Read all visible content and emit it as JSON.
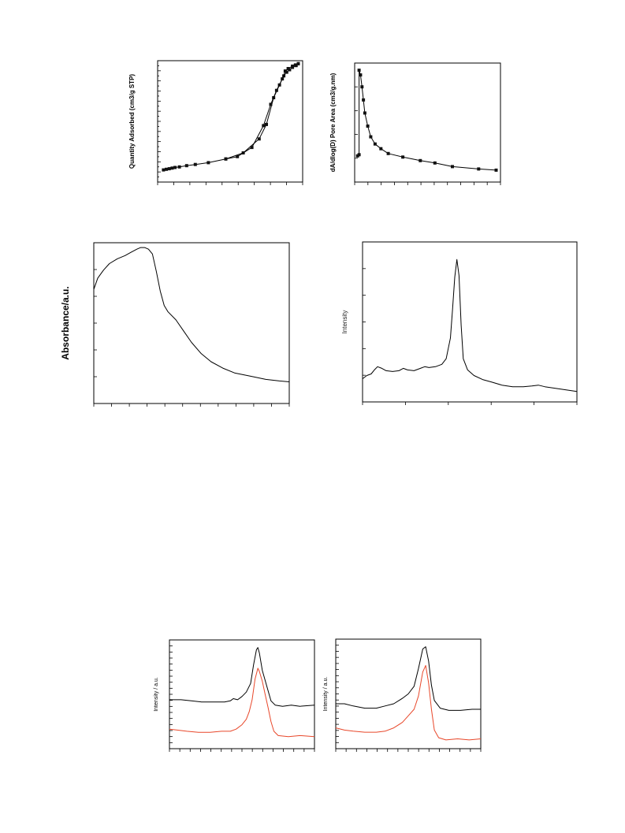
{
  "chart_data": [
    {
      "type": "line",
      "panel": "nitrogen-isotherm",
      "ylabel": "Quantity Adsorbed (cm3/g STP)",
      "xlabel": "",
      "xlim": [
        0,
        1
      ],
      "ylim": [
        0,
        1
      ],
      "markers": true,
      "series": [
        {
          "values": [
            [
              0.04,
              0.1
            ],
            [
              0.06,
              0.105
            ],
            [
              0.08,
              0.11
            ],
            [
              0.1,
              0.115
            ],
            [
              0.12,
              0.12
            ],
            [
              0.15,
              0.125
            ],
            [
              0.2,
              0.135
            ],
            [
              0.26,
              0.145
            ],
            [
              0.35,
              0.16
            ],
            [
              0.47,
              0.19
            ],
            [
              0.59,
              0.24
            ],
            [
              0.7,
              0.355
            ],
            [
              0.75,
              0.475
            ],
            [
              0.8,
              0.695
            ],
            [
              0.84,
              0.8
            ],
            [
              0.87,
              0.875
            ],
            [
              0.89,
              0.905
            ],
            [
              0.91,
              0.925
            ],
            [
              0.93,
              0.945
            ],
            [
              0.955,
              0.96
            ],
            [
              0.97,
              0.975
            ]
          ]
        },
        {
          "values": [
            [
              0.97,
              0.975
            ],
            [
              0.95,
              0.965
            ],
            [
              0.93,
              0.955
            ],
            [
              0.9,
              0.935
            ],
            [
              0.88,
              0.915
            ],
            [
              0.86,
              0.85
            ],
            [
              0.82,
              0.755
            ],
            [
              0.78,
              0.64
            ],
            [
              0.73,
              0.465
            ],
            [
              0.65,
              0.285
            ],
            [
              0.55,
              0.21
            ],
            [
              0.47,
              0.19
            ]
          ]
        }
      ]
    },
    {
      "type": "line",
      "panel": "pore-area-distribution",
      "ylabel": "dA/dlog(D) Pore Area (cm3/g.nm)",
      "xlabel": "",
      "xlim": [
        0,
        1
      ],
      "ylim": [
        0,
        1
      ],
      "markers": true,
      "series": [
        {
          "values": [
            [
              0.02,
              0.22
            ],
            [
              0.03,
              0.23
            ],
            [
              0.03,
              0.94
            ],
            [
              0.04,
              0.9
            ],
            [
              0.05,
              0.8
            ],
            [
              0.06,
              0.69
            ],
            [
              0.07,
              0.58
            ],
            [
              0.09,
              0.47
            ],
            [
              0.11,
              0.38
            ],
            [
              0.14,
              0.32
            ],
            [
              0.18,
              0.28
            ],
            [
              0.23,
              0.24
            ],
            [
              0.33,
              0.21
            ],
            [
              0.45,
              0.18
            ],
            [
              0.55,
              0.16
            ],
            [
              0.67,
              0.13
            ],
            [
              0.85,
              0.11
            ],
            [
              0.97,
              0.1
            ]
          ]
        }
      ]
    },
    {
      "type": "line",
      "panel": "uv-vis-absorbance",
      "ylabel": "Absorbance/a.u.",
      "xlabel": "",
      "xlim": [
        0,
        1
      ],
      "ylim": [
        0,
        1
      ],
      "series": [
        {
          "values": [
            [
              0.0,
              0.71
            ],
            [
              0.02,
              0.78
            ],
            [
              0.05,
              0.83
            ],
            [
              0.08,
              0.87
            ],
            [
              0.12,
              0.9
            ],
            [
              0.16,
              0.92
            ],
            [
              0.19,
              0.94
            ],
            [
              0.22,
              0.96
            ],
            [
              0.24,
              0.97
            ],
            [
              0.26,
              0.97
            ],
            [
              0.28,
              0.96
            ],
            [
              0.3,
              0.93
            ],
            [
              0.32,
              0.82
            ],
            [
              0.34,
              0.7
            ],
            [
              0.36,
              0.61
            ],
            [
              0.38,
              0.57
            ],
            [
              0.42,
              0.52
            ],
            [
              0.46,
              0.45
            ],
            [
              0.5,
              0.38
            ],
            [
              0.55,
              0.31
            ],
            [
              0.6,
              0.26
            ],
            [
              0.66,
              0.22
            ],
            [
              0.72,
              0.19
            ],
            [
              0.8,
              0.17
            ],
            [
              0.88,
              0.15
            ],
            [
              0.95,
              0.14
            ],
            [
              1.0,
              0.135
            ]
          ]
        }
      ]
    },
    {
      "type": "line",
      "panel": "xrd-pattern",
      "ylabel": "Intensity",
      "xlabel": "",
      "xlim": [
        0,
        1
      ],
      "ylim": [
        0,
        1
      ],
      "series": [
        {
          "values": [
            [
              0.0,
              0.145
            ],
            [
              0.02,
              0.165
            ],
            [
              0.04,
              0.175
            ],
            [
              0.055,
              0.2
            ],
            [
              0.07,
              0.22
            ],
            [
              0.09,
              0.21
            ],
            [
              0.11,
              0.195
            ],
            [
              0.14,
              0.19
            ],
            [
              0.17,
              0.195
            ],
            [
              0.19,
              0.21
            ],
            [
              0.21,
              0.2
            ],
            [
              0.24,
              0.195
            ],
            [
              0.27,
              0.21
            ],
            [
              0.29,
              0.22
            ],
            [
              0.31,
              0.215
            ],
            [
              0.34,
              0.22
            ],
            [
              0.37,
              0.235
            ],
            [
              0.39,
              0.27
            ],
            [
              0.41,
              0.4
            ],
            [
              0.42,
              0.58
            ],
            [
              0.43,
              0.78
            ],
            [
              0.44,
              0.89
            ],
            [
              0.45,
              0.79
            ],
            [
              0.46,
              0.48
            ],
            [
              0.47,
              0.27
            ],
            [
              0.49,
              0.2
            ],
            [
              0.52,
              0.165
            ],
            [
              0.56,
              0.14
            ],
            [
              0.6,
              0.125
            ],
            [
              0.65,
              0.105
            ],
            [
              0.7,
              0.095
            ],
            [
              0.75,
              0.095
            ],
            [
              0.79,
              0.1
            ],
            [
              0.82,
              0.105
            ],
            [
              0.85,
              0.095
            ],
            [
              0.9,
              0.085
            ],
            [
              0.95,
              0.075
            ],
            [
              1.0,
              0.065
            ]
          ]
        }
      ]
    },
    {
      "type": "line",
      "panel": "xps-left",
      "ylabel": "Intensity / a.u.",
      "xlabel": "",
      "xlim": [
        0,
        1
      ],
      "ylim": [
        0,
        1
      ],
      "series": [
        {
          "color": "#000000",
          "values": [
            [
              0.0,
              0.45
            ],
            [
              0.08,
              0.45
            ],
            [
              0.15,
              0.44
            ],
            [
              0.22,
              0.43
            ],
            [
              0.3,
              0.43
            ],
            [
              0.38,
              0.43
            ],
            [
              0.42,
              0.44
            ],
            [
              0.44,
              0.46
            ],
            [
              0.47,
              0.45
            ],
            [
              0.5,
              0.48
            ],
            [
              0.53,
              0.52
            ],
            [
              0.56,
              0.6
            ],
            [
              0.58,
              0.77
            ],
            [
              0.6,
              0.91
            ],
            [
              0.61,
              0.93
            ],
            [
              0.62,
              0.88
            ],
            [
              0.64,
              0.72
            ],
            [
              0.67,
              0.58
            ],
            [
              0.7,
              0.44
            ],
            [
              0.73,
              0.4
            ],
            [
              0.78,
              0.39
            ],
            [
              0.84,
              0.4
            ],
            [
              0.9,
              0.39
            ],
            [
              1.0,
              0.4
            ]
          ]
        },
        {
          "color": "#e8472a",
          "values": [
            [
              0.0,
              0.18
            ],
            [
              0.06,
              0.17
            ],
            [
              0.12,
              0.16
            ],
            [
              0.2,
              0.15
            ],
            [
              0.28,
              0.15
            ],
            [
              0.36,
              0.16
            ],
            [
              0.42,
              0.16
            ],
            [
              0.46,
              0.18
            ],
            [
              0.5,
              0.22
            ],
            [
              0.53,
              0.27
            ],
            [
              0.55,
              0.34
            ],
            [
              0.57,
              0.45
            ],
            [
              0.59,
              0.64
            ],
            [
              0.61,
              0.74
            ],
            [
              0.62,
              0.71
            ],
            [
              0.64,
              0.62
            ],
            [
              0.66,
              0.5
            ],
            [
              0.68,
              0.38
            ],
            [
              0.7,
              0.25
            ],
            [
              0.72,
              0.16
            ],
            [
              0.75,
              0.12
            ],
            [
              0.82,
              0.11
            ],
            [
              0.9,
              0.12
            ],
            [
              1.0,
              0.11
            ]
          ]
        }
      ]
    },
    {
      "type": "line",
      "panel": "xps-right",
      "ylabel": "Intensity / a.u.",
      "xlabel": "",
      "xlim": [
        0,
        1
      ],
      "ylim": [
        0,
        1
      ],
      "series": [
        {
          "color": "#000000",
          "values": [
            [
              0.0,
              0.41
            ],
            [
              0.06,
              0.41
            ],
            [
              0.12,
              0.39
            ],
            [
              0.2,
              0.37
            ],
            [
              0.28,
              0.37
            ],
            [
              0.34,
              0.39
            ],
            [
              0.4,
              0.41
            ],
            [
              0.46,
              0.46
            ],
            [
              0.5,
              0.5
            ],
            [
              0.54,
              0.57
            ],
            [
              0.57,
              0.73
            ],
            [
              0.6,
              0.91
            ],
            [
              0.62,
              0.93
            ],
            [
              0.64,
              0.8
            ],
            [
              0.66,
              0.58
            ],
            [
              0.68,
              0.44
            ],
            [
              0.72,
              0.37
            ],
            [
              0.78,
              0.35
            ],
            [
              0.86,
              0.35
            ],
            [
              0.94,
              0.36
            ],
            [
              1.0,
              0.36
            ]
          ]
        },
        {
          "color": "#e8472a",
          "values": [
            [
              0.0,
              0.19
            ],
            [
              0.06,
              0.17
            ],
            [
              0.12,
              0.16
            ],
            [
              0.2,
              0.15
            ],
            [
              0.28,
              0.15
            ],
            [
              0.34,
              0.16
            ],
            [
              0.4,
              0.19
            ],
            [
              0.46,
              0.24
            ],
            [
              0.5,
              0.3
            ],
            [
              0.54,
              0.36
            ],
            [
              0.57,
              0.48
            ],
            [
              0.6,
              0.7
            ],
            [
              0.62,
              0.76
            ],
            [
              0.64,
              0.6
            ],
            [
              0.66,
              0.36
            ],
            [
              0.68,
              0.17
            ],
            [
              0.71,
              0.1
            ],
            [
              0.76,
              0.08
            ],
            [
              0.84,
              0.09
            ],
            [
              0.92,
              0.08
            ],
            [
              1.0,
              0.09
            ]
          ]
        }
      ]
    }
  ]
}
